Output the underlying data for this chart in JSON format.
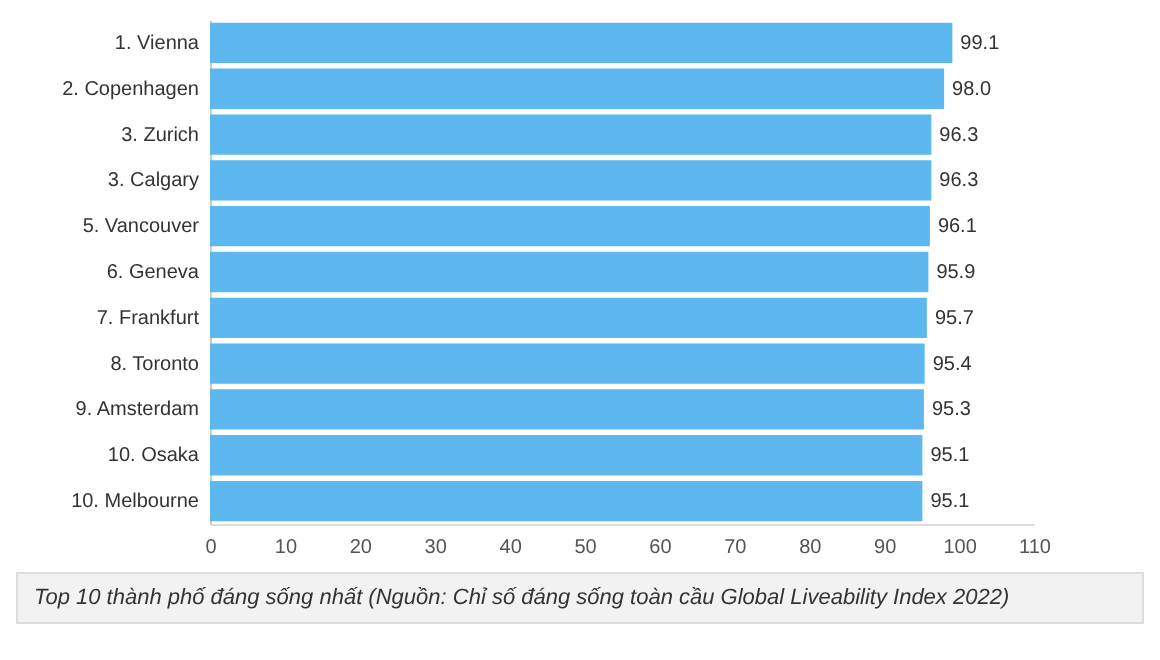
{
  "chart_data": {
    "type": "bar",
    "orientation": "horizontal",
    "categories": [
      "1. Vienna",
      "2. Copenhagen",
      "3. Zurich",
      "3. Calgary",
      "5. Vancouver",
      "6. Geneva",
      "7. Frankfurt",
      "8. Toronto",
      "9. Amsterdam",
      "10. Osaka",
      "10. Melbourne"
    ],
    "values": [
      99.1,
      98.0,
      96.3,
      96.3,
      96.1,
      95.9,
      95.7,
      95.4,
      95.3,
      95.1,
      95.1
    ],
    "value_labels": [
      "99.1",
      "98.0",
      "96.3",
      "96.3",
      "96.1",
      "95.9",
      "95.7",
      "95.4",
      "95.3",
      "95.1",
      "95.1"
    ],
    "color": "#5cb8ef",
    "xlim": [
      0,
      110
    ],
    "xticks": [
      0,
      10,
      20,
      30,
      40,
      50,
      60,
      70,
      80,
      90,
      100,
      110
    ],
    "grid": false,
    "annotations": [
      "Top 10 thành phố đáng sống nhất (Nguồn: Chỉ số đáng sống toàn cầu Global Liveability Index 2022)"
    ]
  }
}
